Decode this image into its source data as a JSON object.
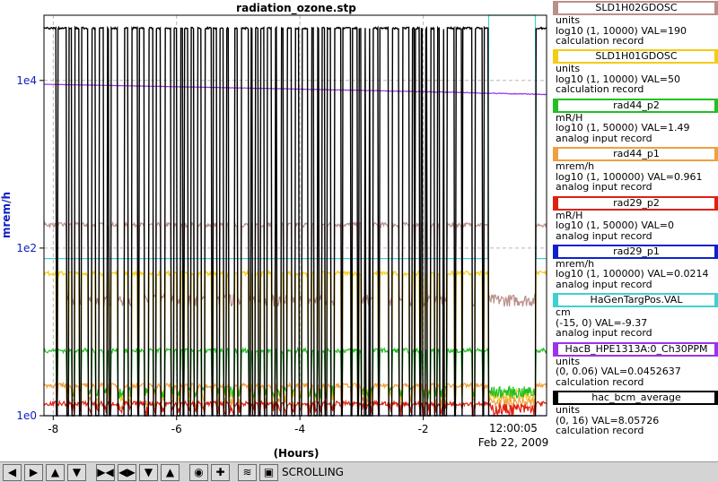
{
  "chart_data": {
    "type": "line",
    "title": "radiation_ozone.stp",
    "xlabel": "(Hours)",
    "ylabel": "mrem/h",
    "x_ticks": [
      "-8",
      "-6",
      "-4",
      "-2"
    ],
    "x_range_hours": [
      -8.15,
      0.0
    ],
    "y_scale": "log",
    "y_ticks": [
      "1e0",
      "1e2",
      "1e4"
    ],
    "y_range": [
      1,
      60000
    ],
    "grid": true,
    "time_label": "12:00:05",
    "date_label": "Feb 22, 2009",
    "series": [
      {
        "name": "SLD1H02GDOSC",
        "color": "#bb8f8a",
        "unit": "units",
        "range": "log10 (1, 10000)",
        "value": "VAL=190",
        "record": "calculation record",
        "levels": {
          "baseline": 190,
          "low": 20
        }
      },
      {
        "name": "SLD1H01GDOSC",
        "color": "#f5cc12",
        "unit": "units",
        "range": "log10 (1, 10000)",
        "value": "VAL=50",
        "record": "calculation record",
        "levels": {
          "baseline": 50,
          "low": 1.5
        }
      },
      {
        "name": "rad44_p2",
        "color": "#22c022",
        "unit": "mR/H",
        "range": "log10 (1, 50000)",
        "value": "VAL=1.49",
        "record": "analog input record",
        "levels": {
          "baseline": 6,
          "low": 1.6
        }
      },
      {
        "name": "rad44_p1",
        "color": "#f0a040",
        "unit": "mrem/h",
        "range": "log10 (1, 100000)",
        "value": "VAL=0.961",
        "record": "analog input record",
        "levels": {
          "baseline": 2.3,
          "low": 1.2
        }
      },
      {
        "name": "rad29_p2",
        "color": "#e02010",
        "unit": "mR/H",
        "range": "log10 (1, 50000)",
        "value": "VAL=0",
        "record": "analog input record",
        "levels": {
          "baseline": 1.4,
          "low": 1
        }
      },
      {
        "name": "rad29_p1",
        "color": "#1020d0",
        "unit": "mrem/h",
        "range": "log10 (1, 100000)",
        "value": "VAL=0.0214",
        "record": "analog input record",
        "levels": {
          "baseline": 1,
          "low": 1
        }
      },
      {
        "name": "HaGenTargPos.VAL",
        "color": "#40d0d0",
        "unit": "cm",
        "range": "(-15, 0)",
        "value": "VAL=-9.37",
        "record": "analog input record",
        "levels": {
          "baseline": 75,
          "high": 60000
        }
      },
      {
        "name": "HacB_HPE1313A:0_Ch30PPM",
        "color": "#9933ee",
        "unit": "units",
        "range": "(0, 0.06)",
        "value": "VAL=0.0452637",
        "record": "calculation record",
        "levels": {
          "start": 9000,
          "end": 6800
        }
      },
      {
        "name": "hac_bcm_average",
        "color": "#000000",
        "unit": "units",
        "range": "(0, 16)",
        "value": "VAL=8.05726",
        "record": "calculation record",
        "levels": {
          "high": 42000,
          "low": 1
        }
      }
    ]
  },
  "toolbar": {
    "buttons": [
      "arrow-left",
      "arrow-right",
      "arrow-up",
      "arrow-down",
      "zoom-in-x",
      "zoom-out-x",
      "zoom-in-y",
      "zoom-out-y",
      "config",
      "add",
      "auto-scale"
    ],
    "mode_label": "SCROLLING"
  }
}
